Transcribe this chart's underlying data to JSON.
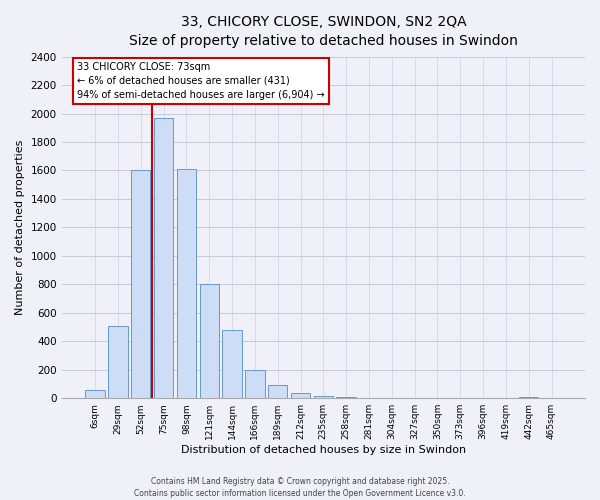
{
  "title": "33, CHICORY CLOSE, SWINDON, SN2 2QA",
  "subtitle": "Size of property relative to detached houses in Swindon",
  "xlabel": "Distribution of detached houses by size in Swindon",
  "ylabel": "Number of detached properties",
  "bar_labels": [
    "6sqm",
    "29sqm",
    "52sqm",
    "75sqm",
    "98sqm",
    "121sqm",
    "144sqm",
    "166sqm",
    "189sqm",
    "212sqm",
    "235sqm",
    "258sqm",
    "281sqm",
    "304sqm",
    "327sqm",
    "350sqm",
    "373sqm",
    "396sqm",
    "419sqm",
    "442sqm",
    "465sqm"
  ],
  "bar_values": [
    55,
    510,
    1600,
    1970,
    1610,
    805,
    480,
    195,
    90,
    35,
    15,
    5,
    0,
    0,
    0,
    0,
    0,
    0,
    0,
    10,
    0
  ],
  "bar_color": "#ccddf5",
  "bar_edge_color": "#6699cc",
  "vline_index": 3,
  "vline_color": "#cc0000",
  "ylim": [
    0,
    2400
  ],
  "yticks": [
    0,
    200,
    400,
    600,
    800,
    1000,
    1200,
    1400,
    1600,
    1800,
    2000,
    2200,
    2400
  ],
  "annotation_line1": "33 CHICORY CLOSE: 73sqm",
  "annotation_line2": "← 6% of detached houses are smaller (431)",
  "annotation_line3": "94% of semi-detached houses are larger (6,904) →",
  "annotation_box_color": "#ffffff",
  "annotation_box_edge": "#cc0000",
  "footer1": "Contains HM Land Registry data © Crown copyright and database right 2025.",
  "footer2": "Contains public sector information licensed under the Open Government Licence v3.0.",
  "background_color": "#f0f0f8",
  "grid_color": "#c8c8dc"
}
